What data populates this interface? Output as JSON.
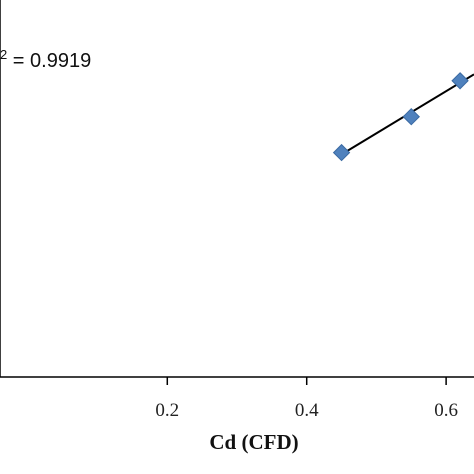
{
  "chart_data": {
    "type": "scatter",
    "title": "",
    "xlabel": "Cd (CFD)",
    "ylabel": "",
    "xlim": [
      -0.04,
      0.64
    ],
    "ylim": [
      0.3,
      0.72
    ],
    "x_ticks": [
      0.2,
      0.4,
      0.6
    ],
    "x_tick_labels": [
      "0.2",
      "0.4",
      "0.6"
    ],
    "grid": false,
    "legend": "none",
    "series": [
      {
        "points": [
          {
            "x": 0.45,
            "y": 0.55
          },
          {
            "x": 0.55,
            "y": 0.59
          },
          {
            "x": 0.62,
            "y": 0.63
          }
        ],
        "marker": "diamond",
        "color": "#4f81bd"
      }
    ],
    "trendline": {
      "type": "linear",
      "x_range": [
        0.45,
        0.64
      ],
      "slope": 0.469,
      "intercept": 0.337,
      "color": "#000000",
      "r2_text_partial": "2 = 0.9919"
    }
  }
}
